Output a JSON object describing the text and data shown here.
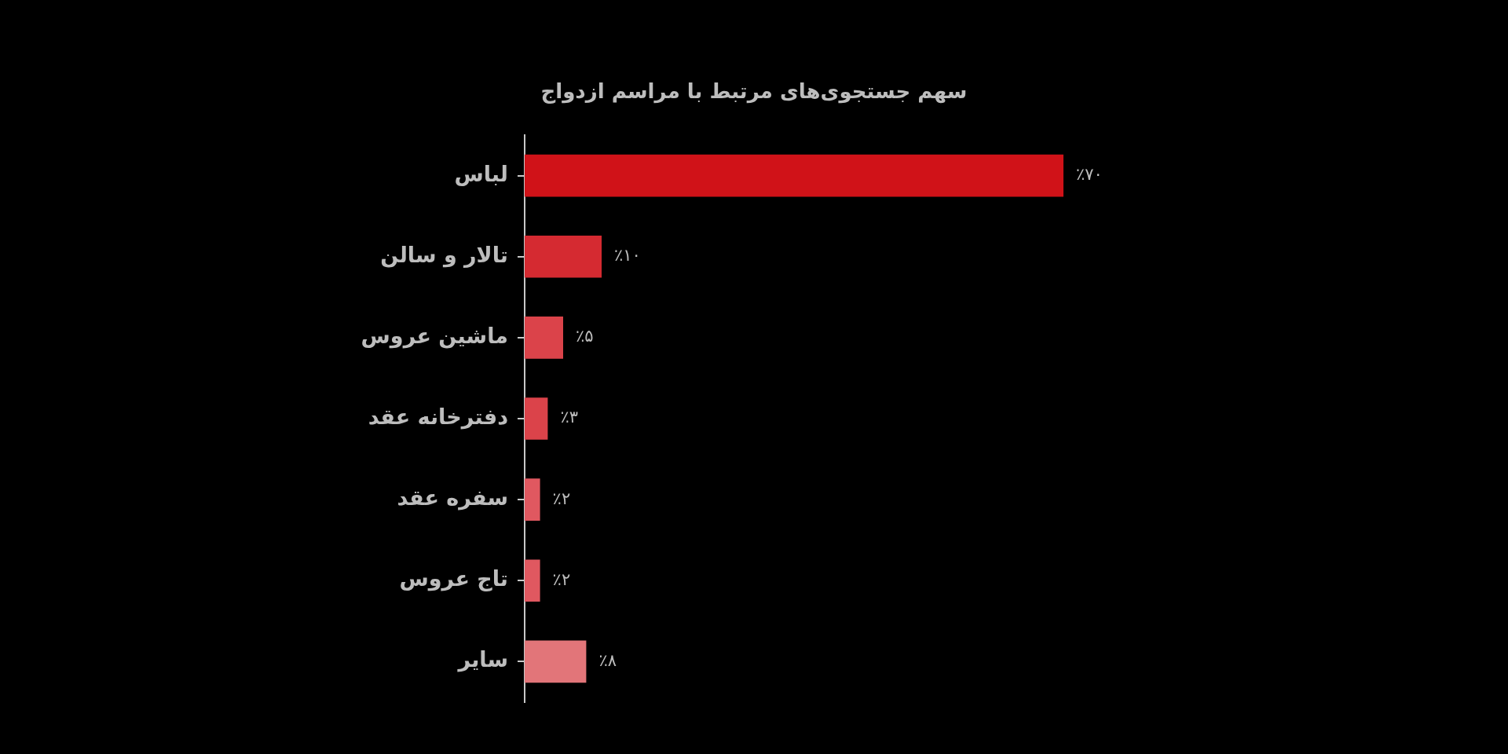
{
  "chart_data": {
    "type": "bar",
    "orientation": "horizontal",
    "title": "سهم جستجوی‌های مرتبط با مراسم ازدواج",
    "categories": [
      "لباس",
      "تالار و سالن",
      "ماشین عروس",
      "دفترخانه عقد",
      "سفره عقد",
      "تاج عروس",
      "سایر"
    ],
    "values": [
      70,
      10,
      5,
      3,
      2,
      2,
      8
    ],
    "colors": [
      "#d01218",
      "#d52a31",
      "#db434a",
      "#db434a",
      "#e05860",
      "#e05860",
      "#e27579"
    ],
    "value_labels": [
      "٪۷۰",
      "٪۱۰",
      "٪۵",
      "٪۳",
      "٪۲",
      "٪۲",
      "٪۸"
    ],
    "legend": false,
    "tick_labels": "y"
  }
}
